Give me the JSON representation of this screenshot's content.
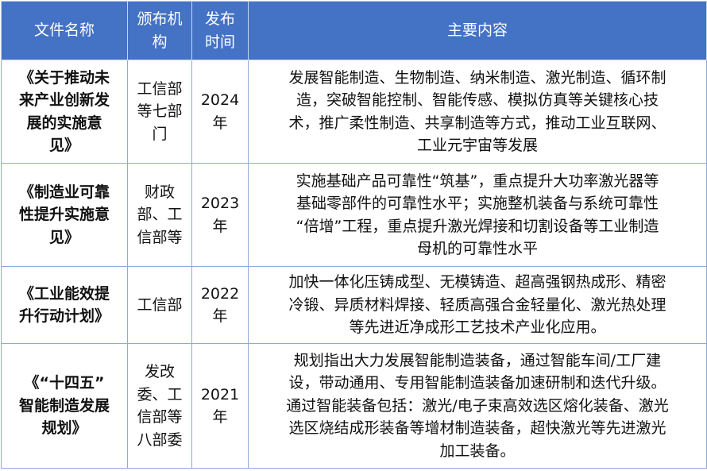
{
  "header": {
    "col1": [
      "文件名称"
    ],
    "col2": [
      "颁布机",
      "构"
    ],
    "col3": [
      "发布",
      "时间"
    ],
    "col4": [
      "主要内容"
    ]
  },
  "colors": {
    "header_bg": "#4472c4",
    "border": "#8eaadb"
  },
  "rows": [
    {
      "name": [
        "《关于推动未",
        "来产业创新发",
        "展的实施意",
        "见》"
      ],
      "org": [
        "工信部",
        "等七部",
        "门"
      ],
      "year": [
        "2024",
        "年"
      ],
      "content": [
        "发展智能制造、生物制造、纳米制造、激光制造、循环制",
        "造，突破智能控制、智能传感、模拟仿真等关键核心技",
        "术，推广柔性制造、共享制造等方式，推动工业互联网、",
        "工业元宇宙等发展"
      ]
    },
    {
      "name": [
        "《制造业可靠",
        "性提升实施意",
        "见》"
      ],
      "org": [
        "财政",
        "部、工",
        "信部等"
      ],
      "year": [
        "2023",
        "年"
      ],
      "content": [
        "实施基础产品可靠性“筑基”，重点提升大功率激光器等",
        "基础零部件的可靠性水平；实施整机装备与系统可靠性",
        "“倍增”工程，重点提升激光焊接和切割设备等工业制造",
        "母机的可靠性水平"
      ]
    },
    {
      "name": [
        "《工业能效提",
        "升行动计划》"
      ],
      "org": [
        "工信部"
      ],
      "year": [
        "2022",
        "年"
      ],
      "content": [
        "加快一体化压铸成型、无模铸造、超高强钢热成形、精密",
        "冷锻、异质材料焊接、轻质高强合金轻量化、激光热处理",
        "等先进近净成形工艺技术产业化应用。"
      ]
    },
    {
      "name": [
        "《“十四五”",
        "智能制造发展",
        "规划》"
      ],
      "org": [
        "发改",
        "委、工",
        "信部等",
        "八部委"
      ],
      "year": [
        "2021",
        "年"
      ],
      "content": [
        "规划指出大力发展智能制造装备，通过智能车间/工厂建",
        "设，带动通用、专用智能制造装备加速研制和迭代升级。",
        "通过智能装备包括：激光/电子束高效选区熔化装备、激光",
        "选区烧结成形装备等增材制造装备，超快激光等先进激光",
        "加工装备。"
      ]
    }
  ]
}
